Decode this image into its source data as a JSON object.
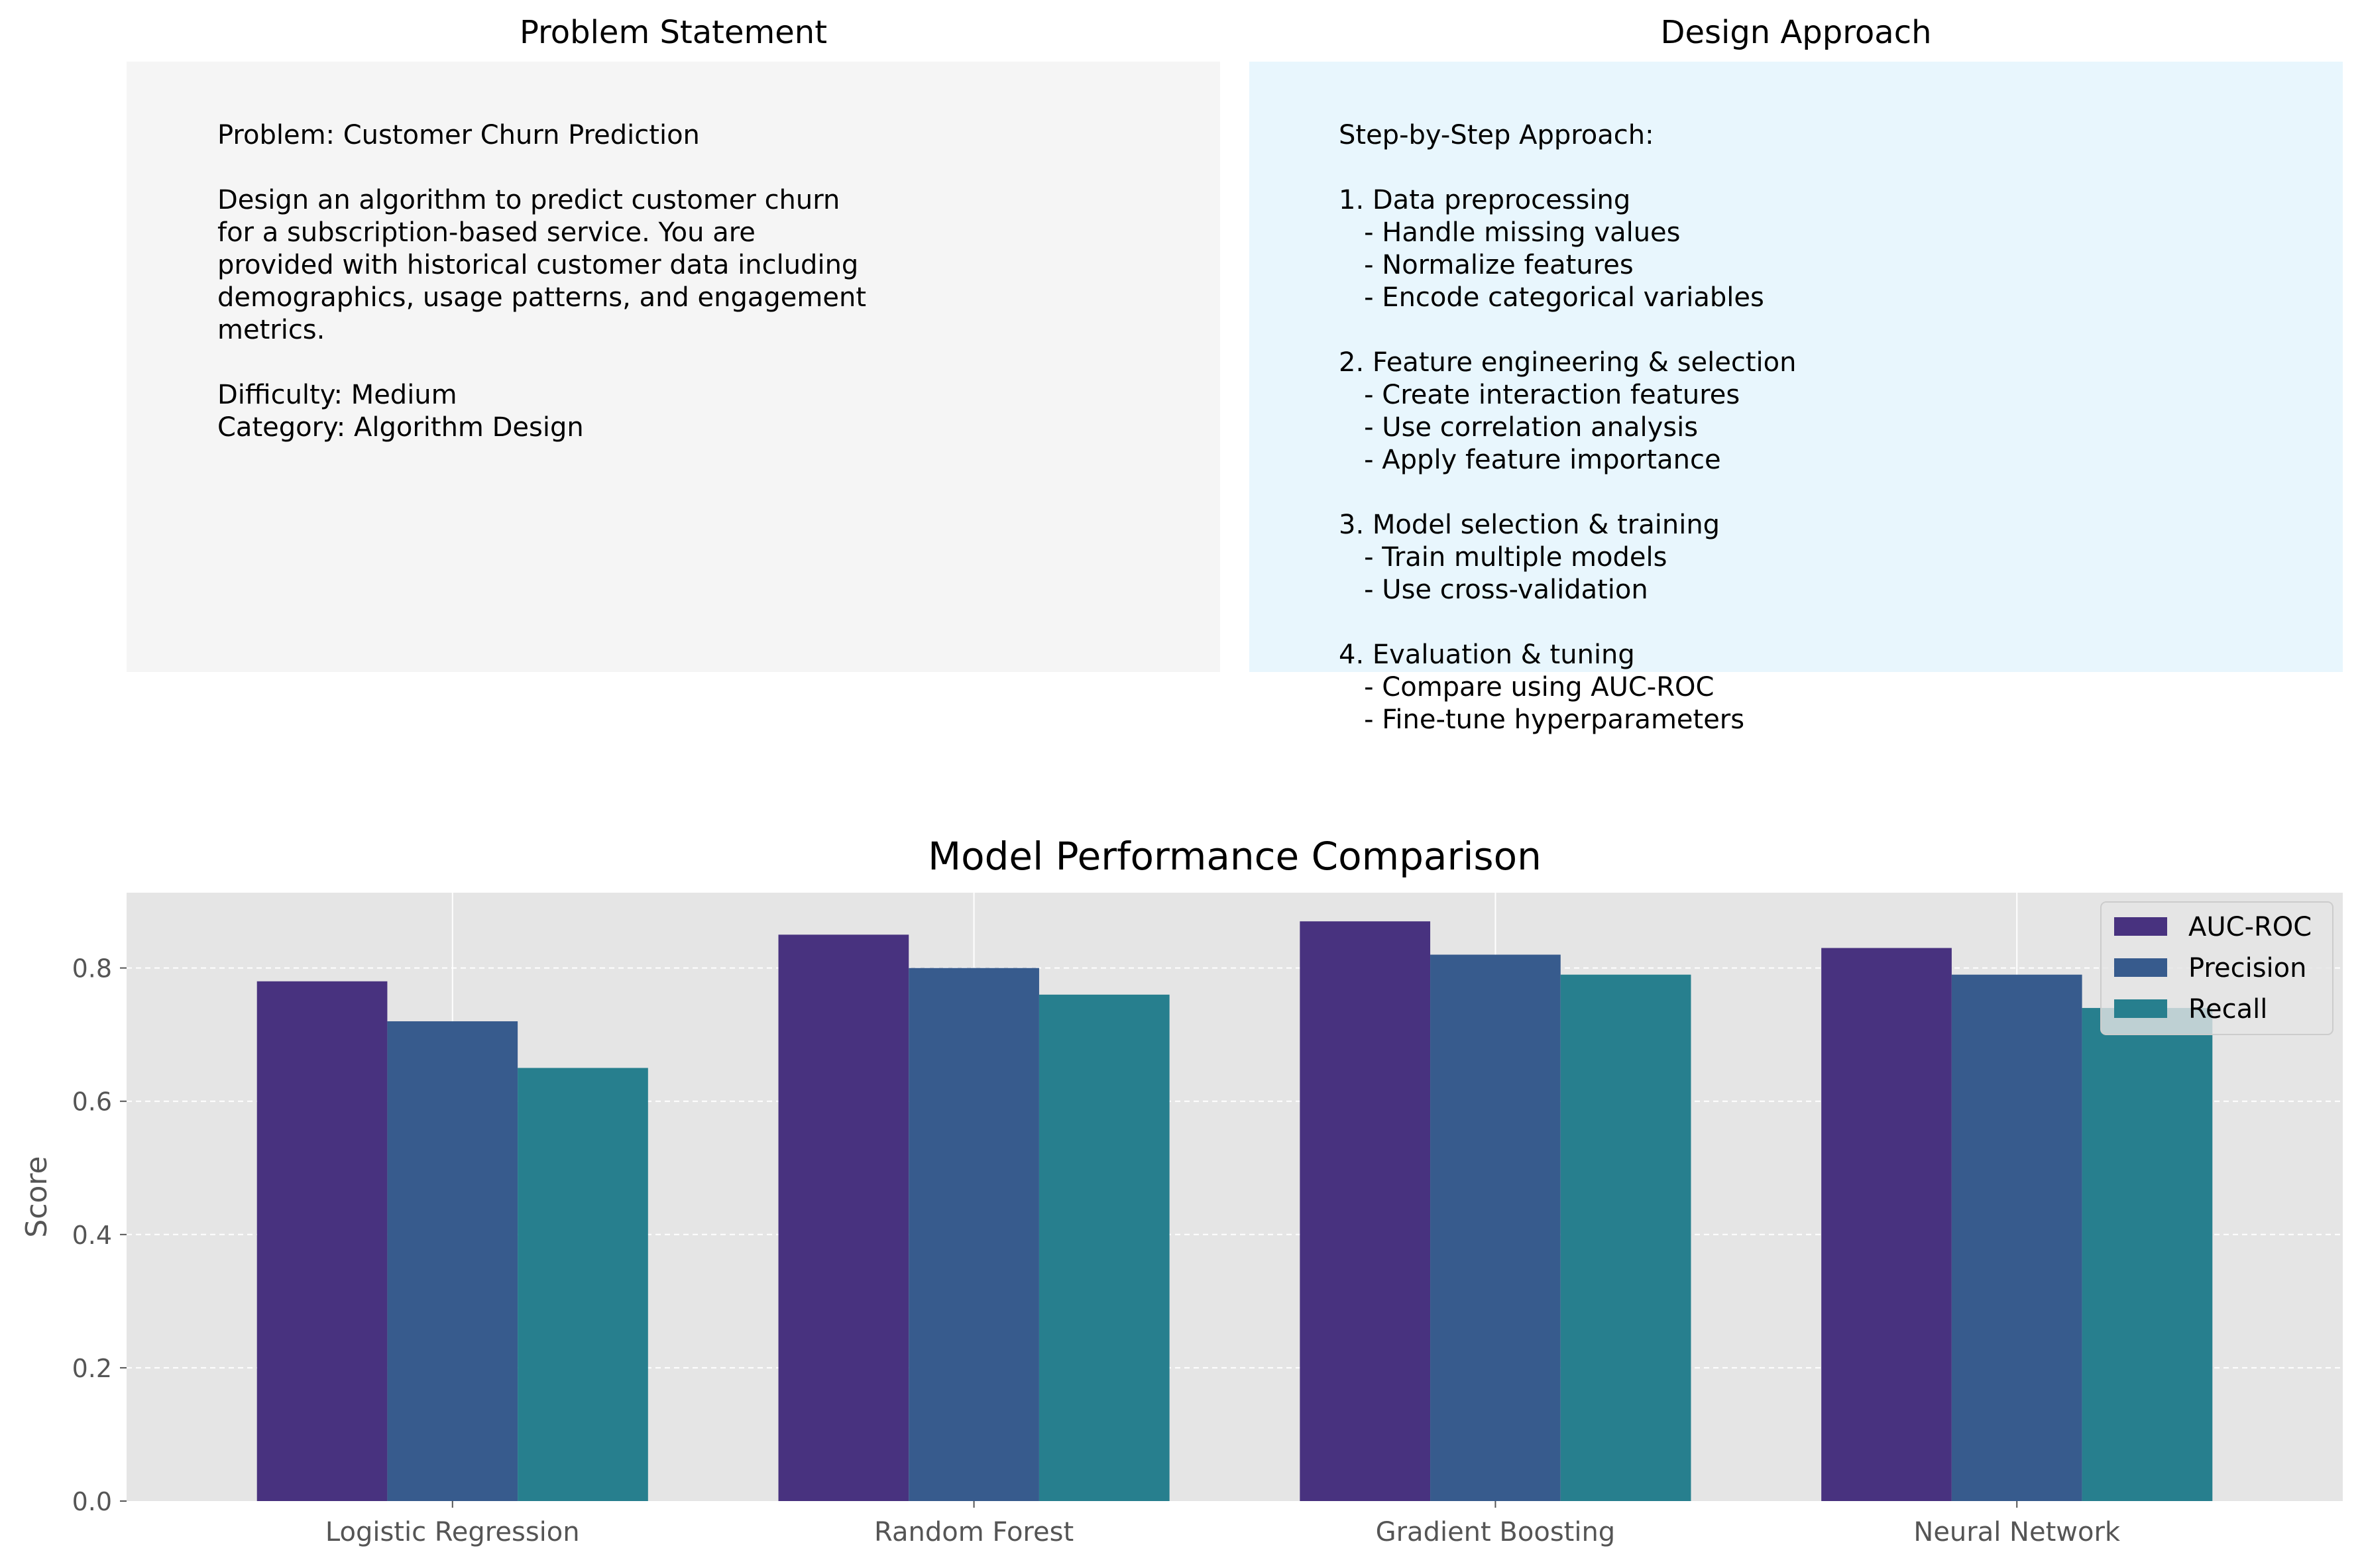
{
  "problem_panel": {
    "title": "Problem Statement",
    "text": "Problem: Customer Churn Prediction\n\nDesign an algorithm to predict customer churn\nfor a subscription-based service. You are\nprovided with historical customer data including\ndemographics, usage patterns, and engagement\nmetrics.\n\nDifficulty: Medium\nCategory: Algorithm Design",
    "background": "#f5f5f5"
  },
  "approach_panel": {
    "title": "Design Approach",
    "text": "Step-by-Step Approach:\n\n1. Data preprocessing\n   - Handle missing values\n   - Normalize features\n   - Encode categorical variables\n\n2. Feature engineering & selection\n   - Create interaction features\n   - Use correlation analysis\n   - Apply feature importance\n\n3. Model selection & training\n   - Train multiple models\n   - Use cross-validation\n\n4. Evaluation & tuning\n   - Compare using AUC-ROC\n   - Fine-tune hyperparameters",
    "background": "#e8f6fd"
  },
  "chart_data": {
    "type": "bar",
    "title": "Model Performance Comparison",
    "xlabel": "",
    "ylabel": "Score",
    "categories": [
      "Logistic Regression",
      "Random Forest",
      "Gradient Boosting",
      "Neural Network"
    ],
    "series": [
      {
        "name": "AUC-ROC",
        "values": [
          0.78,
          0.85,
          0.87,
          0.83
        ],
        "color": "#48327f"
      },
      {
        "name": "Precision",
        "values": [
          0.72,
          0.8,
          0.82,
          0.79
        ],
        "color": "#375b8d"
      },
      {
        "name": "Recall",
        "values": [
          0.65,
          0.76,
          0.79,
          0.74
        ],
        "color": "#277f8e"
      }
    ],
    "ylim": [
      0,
      0.913
    ],
    "yticks": [
      "0.0",
      "0.2",
      "0.4",
      "0.6",
      "0.8"
    ],
    "grid": true,
    "legend": "top-right",
    "background": "#e5e5e5"
  }
}
